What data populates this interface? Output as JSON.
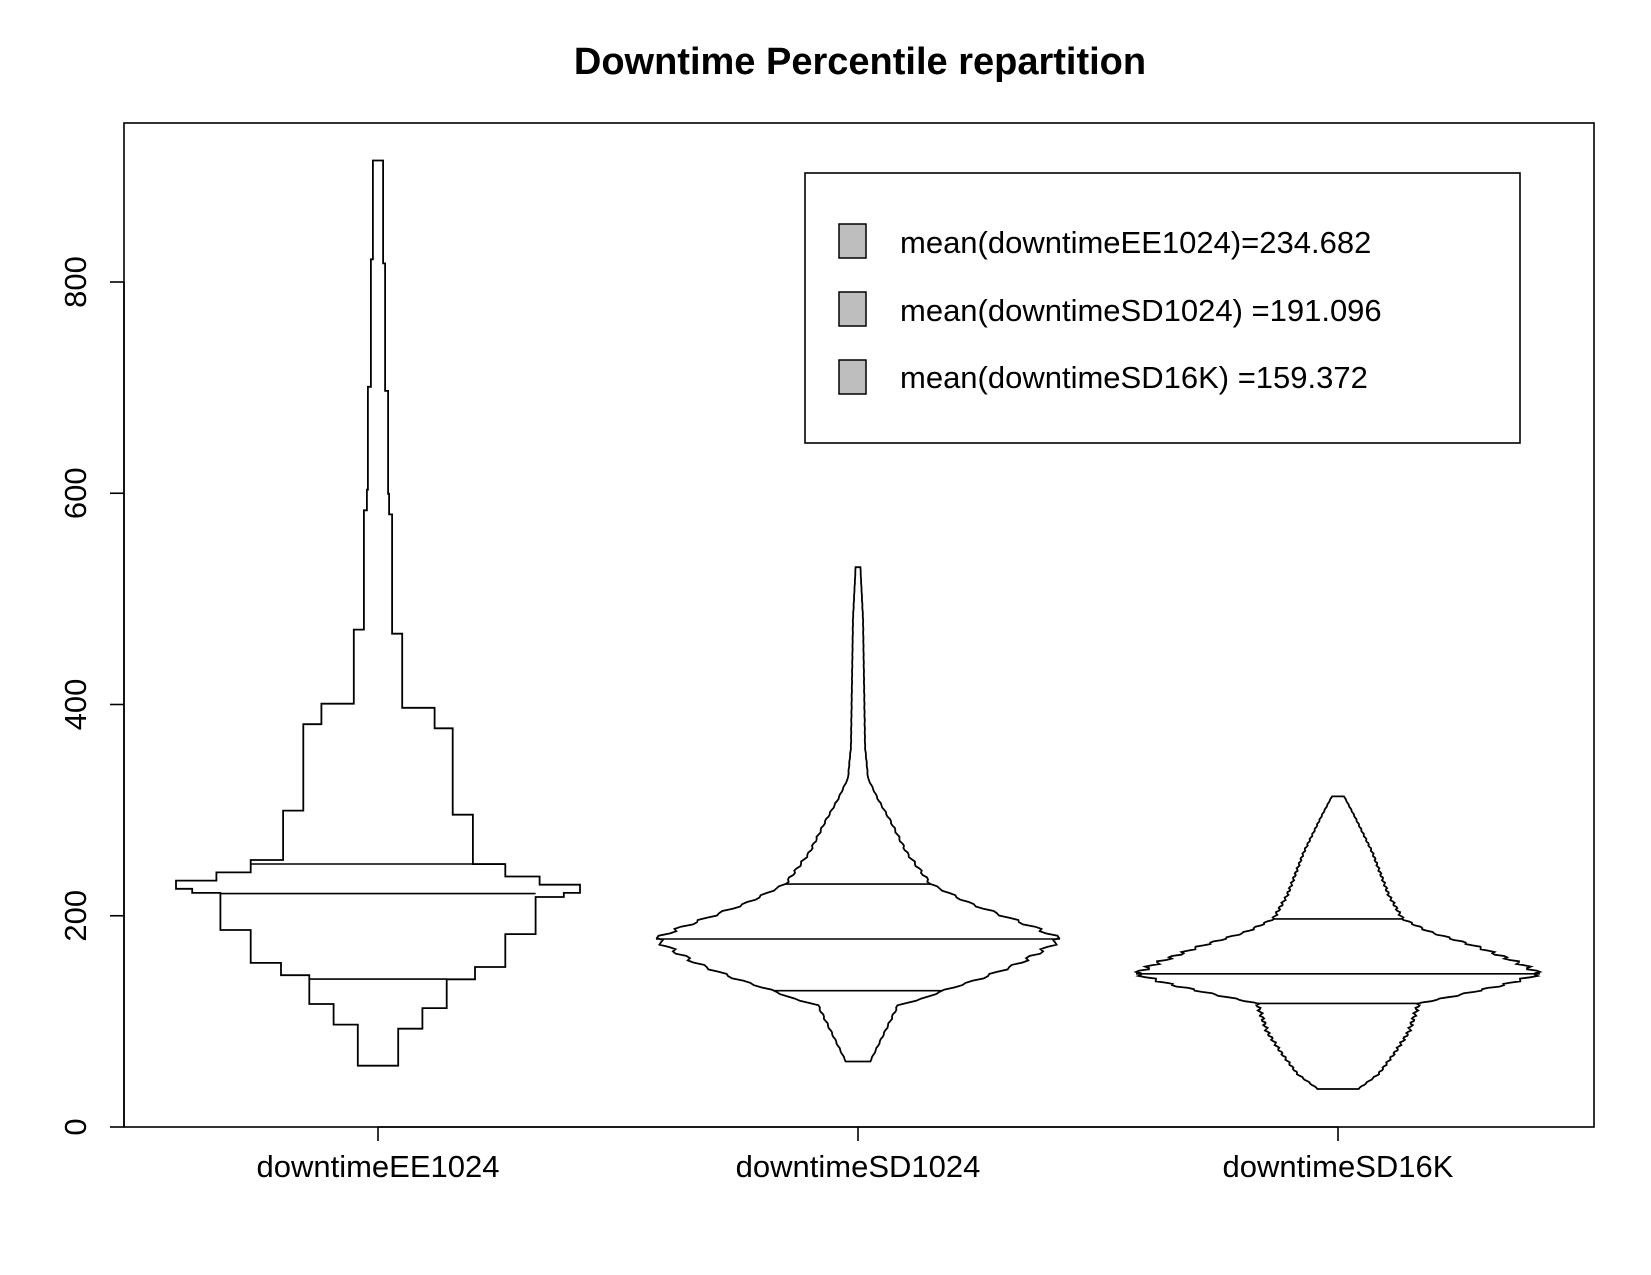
{
  "chart_data": {
    "type": "violin",
    "title": "Downtime Percentile repartition",
    "xlabel": "",
    "ylabel": "",
    "ylim": [
      0,
      920
    ],
    "y_ticks": [
      0,
      200,
      400,
      600,
      800
    ],
    "categories": [
      "downtimeEE1024",
      "downtimeSD1024",
      "downtimeSD16K"
    ],
    "grid": false,
    "legend": {
      "placement": "top-right",
      "entries": [
        {
          "label": "mean(downtimeEE1024)=234.682",
          "color": "#bebebe"
        },
        {
          "label": "mean(downtimeSD1024)  =191.096",
          "color": "#bebebe"
        },
        {
          "label": "mean(downtimeSD16K)  =159.372",
          "color": "#bebebe"
        }
      ]
    },
    "series": [
      {
        "category": "downtimeEE1024",
        "min": 58,
        "max": 915,
        "quartiles": [
          140,
          221,
          249
        ],
        "mean": 234.682,
        "shape": "step",
        "profile": [
          [
            58,
            0.1
          ],
          [
            95,
            0.22
          ],
          [
            113,
            0.34
          ],
          [
            140,
            0.48
          ],
          [
            155,
            0.63
          ],
          [
            186,
            0.78
          ],
          [
            221,
            0.92
          ],
          [
            222,
            1.0
          ],
          [
            233,
            0.8
          ],
          [
            240,
            0.63
          ],
          [
            249,
            0.47
          ],
          [
            299,
            0.37
          ],
          [
            378,
            0.28
          ],
          [
            398,
            0.12
          ],
          [
            470,
            0.07
          ],
          [
            580,
            0.055
          ],
          [
            600,
            0.05
          ],
          [
            700,
            0.035
          ],
          [
            820,
            0.025
          ],
          [
            915,
            0.018
          ]
        ]
      },
      {
        "category": "downtimeSD1024",
        "min": 62,
        "max": 530,
        "quartiles": [
          129,
          178,
          230
        ],
        "mean": 191.096,
        "shape": "smooth",
        "profile": [
          [
            62,
            0.06
          ],
          [
            116,
            0.2
          ],
          [
            120,
            0.3
          ],
          [
            129,
            0.42
          ],
          [
            140,
            0.6
          ],
          [
            155,
            0.8
          ],
          [
            170,
            0.94
          ],
          [
            178,
            1.0
          ],
          [
            187,
            0.9
          ],
          [
            200,
            0.72
          ],
          [
            212,
            0.55
          ],
          [
            230,
            0.36
          ],
          [
            260,
            0.24
          ],
          [
            290,
            0.16
          ],
          [
            310,
            0.1
          ],
          [
            330,
            0.05
          ],
          [
            360,
            0.035
          ],
          [
            420,
            0.03
          ],
          [
            480,
            0.025
          ],
          [
            530,
            0.012
          ]
        ]
      },
      {
        "category": "downtimeSD16K",
        "min": 36,
        "max": 313,
        "quartiles": [
          117,
          145,
          197
        ],
        "mean": 159.372,
        "shape": "smooth",
        "profile": [
          [
            36,
            0.1
          ],
          [
            50,
            0.2
          ],
          [
            70,
            0.28
          ],
          [
            90,
            0.35
          ],
          [
            117,
            0.4
          ],
          [
            125,
            0.6
          ],
          [
            135,
            0.83
          ],
          [
            145,
            1.0
          ],
          [
            155,
            0.9
          ],
          [
            170,
            0.7
          ],
          [
            185,
            0.45
          ],
          [
            197,
            0.32
          ],
          [
            220,
            0.25
          ],
          [
            260,
            0.17
          ],
          [
            295,
            0.08
          ],
          [
            313,
            0.03
          ]
        ]
      }
    ]
  }
}
